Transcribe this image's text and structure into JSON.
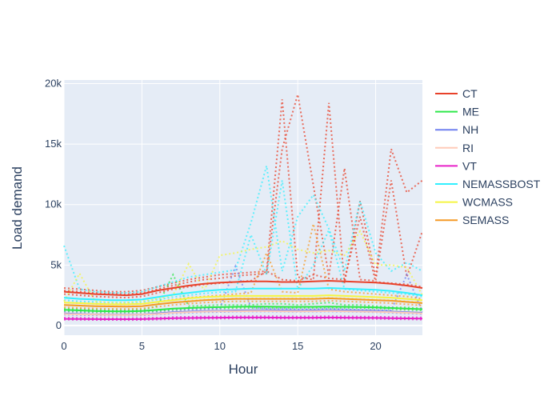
{
  "chart_data": {
    "type": "line",
    "title": "",
    "xlabel": "Hour",
    "ylabel": "Load demand",
    "xlim": [
      0,
      23
    ],
    "ylim": [
      -800,
      20300
    ],
    "x_ticks": [
      0,
      5,
      10,
      15,
      20
    ],
    "y_ticks": [
      {
        "value": 0,
        "label": "0"
      },
      {
        "value": 5000,
        "label": "5k"
      },
      {
        "value": 10000,
        "label": "10k"
      },
      {
        "value": 15000,
        "label": "15k"
      },
      {
        "value": 20000,
        "label": "20k"
      }
    ],
    "grid": true,
    "legend": "right",
    "x": [
      0,
      1,
      2,
      3,
      4,
      5,
      6,
      7,
      8,
      9,
      10,
      11,
      12,
      13,
      14,
      15,
      16,
      17,
      18,
      19,
      20,
      21,
      22,
      23
    ],
    "series": [
      {
        "name": "CT",
        "color": "#e8412a",
        "values": [
          2800,
          2700,
          2600,
          2550,
          2500,
          2600,
          2900,
          3100,
          3300,
          3450,
          3550,
          3600,
          3650,
          3650,
          3600,
          3600,
          3650,
          3700,
          3650,
          3600,
          3550,
          3450,
          3300,
          3100
        ],
        "scenarios": [
          [
            3100,
            3000,
            2900,
            2800,
            2800,
            2900,
            3200,
            3500,
            3800,
            4000,
            4200,
            4300,
            4400,
            4500,
            18700,
            4000,
            3800,
            18400,
            3500,
            10300,
            4000,
            14600,
            11000,
            12000
          ],
          [
            2900,
            2800,
            2700,
            2650,
            2600,
            2700,
            3000,
            3300,
            3600,
            3800,
            3900,
            4100,
            4200,
            4300,
            14600,
            19100,
            11600,
            4100,
            13000,
            3800,
            3700,
            12000,
            4000,
            7800
          ],
          [
            2600,
            2500,
            2400,
            2350,
            2300,
            2400,
            2700,
            3000,
            3200,
            3400,
            3500,
            3600,
            3700,
            4500,
            3800,
            3700,
            4200,
            3900,
            3800,
            9000,
            3600,
            3500,
            3400,
            3200
          ]
        ]
      },
      {
        "name": "ME",
        "color": "#2ee84a",
        "values": [
          1300,
          1250,
          1200,
          1180,
          1170,
          1200,
          1300,
          1400,
          1450,
          1500,
          1520,
          1550,
          1560,
          1560,
          1550,
          1540,
          1550,
          1560,
          1550,
          1530,
          1500,
          1450,
          1400,
          1350
        ],
        "scenarios": [
          [
            1400,
            1350,
            1300,
            1250,
            1250,
            1300,
            1600,
            4200,
            1600,
            1650,
            1700,
            1700,
            1700,
            1800,
            1800,
            1700,
            1800,
            1900,
            1700,
            1700,
            1600,
            1500,
            1500,
            1400
          ],
          [
            1200,
            1150,
            1100,
            1080,
            1070,
            1100,
            1200,
            1300,
            1350,
            1400,
            1400,
            1450,
            1450,
            1450,
            1450,
            1440,
            1450,
            1460,
            1450,
            1430,
            1400,
            1350,
            1300,
            1250
          ]
        ]
      },
      {
        "name": "NH",
        "color": "#7080f0",
        "values": [
          1000,
          950,
          920,
          900,
          890,
          910,
          1000,
          1100,
          1150,
          1200,
          1220,
          1250,
          1260,
          1260,
          1250,
          1240,
          1250,
          1260,
          1250,
          1230,
          1200,
          1150,
          1100,
          1050
        ],
        "scenarios": [
          [
            1100,
            1050,
            1000,
            980,
            970,
            1000,
            1100,
            1200,
            1300,
            1350,
            1400,
            4900,
            1500,
            1400,
            1400,
            1350,
            1350,
            1400,
            1350,
            1300,
            1300,
            1250,
            4200,
            1150
          ],
          [
            900,
            870,
            850,
            830,
            820,
            840,
            920,
            1000,
            1050,
            1100,
            1120,
            1150,
            1160,
            1160,
            1150,
            1140,
            1150,
            1160,
            1150,
            1130,
            1100,
            1050,
            1000,
            950
          ]
        ]
      },
      {
        "name": "RI",
        "color": "#ffcbb8",
        "values": [
          950,
          920,
          900,
          880,
          870,
          890,
          950,
          1050,
          1100,
          1150,
          1170,
          1180,
          1190,
          1190,
          1180,
          1170,
          1180,
          1190,
          1180,
          1160,
          1140,
          1100,
          1050,
          1000
        ],
        "scenarios": [
          [
            1050,
            1000,
            980,
            960,
            950,
            970,
            1050,
            1150,
            1200,
            1250,
            1280,
            1300,
            1300,
            1300,
            1300,
            1280,
            1300,
            1300,
            1280,
            1260,
            1240,
            1200,
            1150,
            1100
          ]
        ]
      },
      {
        "name": "VT",
        "color": "#e820c8",
        "values": [
          550,
          540,
          530,
          520,
          520,
          530,
          560,
          600,
          620,
          640,
          650,
          660,
          660,
          660,
          650,
          650,
          650,
          660,
          650,
          640,
          630,
          610,
          590,
          570
        ],
        "scenarios": [
          [
            650,
            630,
            620,
            610,
            600,
            620,
            650,
            700,
            720,
            740,
            750,
            760,
            770,
            770,
            760,
            750,
            760,
            770,
            760,
            740,
            730,
            710,
            690,
            670
          ],
          [
            480,
            470,
            460,
            455,
            450,
            460,
            490,
            520,
            540,
            560,
            570,
            580,
            580,
            580,
            570,
            570,
            570,
            580,
            570,
            560,
            550,
            530,
            510,
            490
          ]
        ]
      },
      {
        "name": "NEMASSBOST",
        "color": "#33f0ff",
        "values": [
          2300,
          2200,
          2150,
          2100,
          2100,
          2150,
          2350,
          2550,
          2700,
          2850,
          2950,
          3000,
          3050,
          3050,
          3050,
          3050,
          3050,
          3100,
          3050,
          3000,
          2950,
          2850,
          2700,
          2500
        ],
        "scenarios": [
          [
            6600,
            3000,
            2800,
            2700,
            2700,
            2800,
            3200,
            3600,
            4000,
            4200,
            4400,
            4600,
            8500,
            13200,
            4500,
            9000,
            10800,
            8000,
            4500,
            10300,
            6000,
            4500,
            5200,
            4500
          ],
          [
            2100,
            2000,
            1950,
            1900,
            1900,
            1950,
            2150,
            2350,
            2500,
            2650,
            2750,
            2800,
            7500,
            4200,
            12000,
            3000,
            5000,
            7900,
            3000,
            2900,
            2800,
            2700,
            2600,
            2400
          ]
        ]
      },
      {
        "name": "WCMASS",
        "color": "#f5f542",
        "values": [
          1900,
          1850,
          1800,
          1750,
          1750,
          1800,
          1950,
          2100,
          2250,
          2350,
          2400,
          2450,
          2450,
          2450,
          2450,
          2450,
          2450,
          2500,
          2450,
          2400,
          2350,
          2300,
          2200,
          2100
        ],
        "scenarios": [
          [
            2000,
            4300,
            2000,
            1900,
            1900,
            2000,
            2200,
            2500,
            5100,
            2900,
            5800,
            6000,
            6300,
            6500,
            7000,
            6300,
            6000,
            6200,
            5800,
            7800,
            5000,
            5000,
            4800,
            2500
          ],
          [
            1700,
            1650,
            1600,
            1580,
            1570,
            1600,
            1750,
            1900,
            2050,
            2150,
            2200,
            2250,
            2250,
            2250,
            2250,
            2250,
            2250,
            2300,
            2250,
            2200,
            2150,
            2100,
            2000,
            1900
          ]
        ]
      },
      {
        "name": "SEMASS",
        "color": "#f59a26",
        "values": [
          1700,
          1650,
          1600,
          1580,
          1570,
          1600,
          1750,
          1900,
          2000,
          2100,
          2150,
          2200,
          2200,
          2200,
          2200,
          2200,
          2200,
          2250,
          2200,
          2150,
          2100,
          2050,
          1950,
          1850
        ],
        "scenarios": [
          [
            1900,
            1850,
            1800,
            1750,
            1750,
            1800,
            1950,
            2150,
            2300,
            2400,
            2500,
            2600,
            2700,
            6000,
            2800,
            2700,
            8400,
            3000,
            2800,
            2700,
            2600,
            2500,
            2400,
            2200
          ],
          [
            1500,
            1450,
            1400,
            1380,
            1370,
            1400,
            1550,
            1700,
            1800,
            1900,
            1950,
            2000,
            2000,
            2000,
            2000,
            2000,
            2000,
            2050,
            2000,
            1950,
            1900,
            1850,
            1750,
            1650
          ]
        ]
      }
    ]
  }
}
